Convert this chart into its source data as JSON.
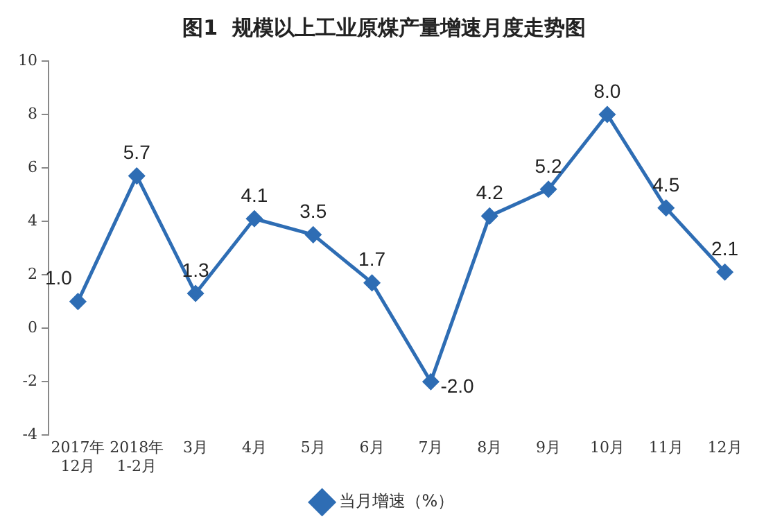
{
  "chart_data": {
    "type": "line",
    "title": "图1  规模以上工业原煤产量增速月度走势图",
    "categories": [
      "2017年\n12月",
      "2018年\n1-2月",
      "3月",
      "4月",
      "5月",
      "6月",
      "7月",
      "8月",
      "9月",
      "10月",
      "11月",
      "12月"
    ],
    "series": [
      {
        "name": "当月增速（%）",
        "color": "#2e6db4",
        "values": [
          1.0,
          5.7,
          1.3,
          4.1,
          3.5,
          1.7,
          -2.0,
          4.2,
          5.2,
          8.0,
          4.5,
          2.1
        ],
        "value_labels": [
          "1.0",
          "5.7",
          "1.3",
          "4.1",
          "3.5",
          "1.7",
          "-2.0",
          "4.2",
          "5.2",
          "8.0",
          "4.5",
          "2.1"
        ]
      }
    ],
    "ylim": [
      -4,
      10
    ],
    "yticks": [
      -4,
      -2,
      0,
      2,
      4,
      6,
      8,
      10
    ],
    "grid": false,
    "legend": "bottom",
    "marker": "diamond",
    "line_style": "solid"
  }
}
